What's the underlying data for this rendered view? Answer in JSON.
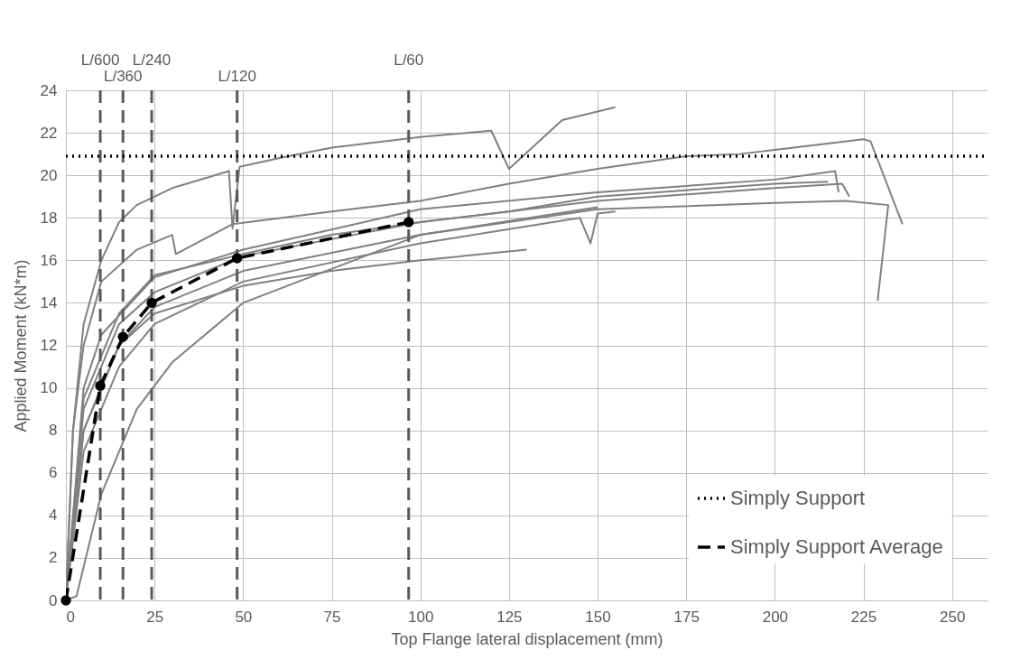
{
  "chart_data": {
    "type": "line",
    "xlabel": "Top Flange lateral displacement (mm)",
    "ylabel": "Applied Moment (kN*m)",
    "xlim": [
      0,
      260
    ],
    "xticks": [
      0,
      25,
      50,
      75,
      100,
      125,
      150,
      175,
      200,
      225,
      250
    ],
    "ylim": [
      0,
      24
    ],
    "yticks": [
      0,
      2,
      4,
      6,
      8,
      10,
      12,
      14,
      16,
      18,
      20,
      22,
      24
    ],
    "grid": true,
    "legend": "bottom right",
    "ref_lines": [
      {
        "axis": "x",
        "value": 9.7,
        "label": "L/600",
        "color": "#595959",
        "line_style": "dashed"
      },
      {
        "axis": "x",
        "value": 16.1,
        "label": "L/360",
        "color": "#595959",
        "line_style": "dashed"
      },
      {
        "axis": "x",
        "value": 24.2,
        "label": "L/240",
        "color": "#595959",
        "line_style": "dashed"
      },
      {
        "axis": "x",
        "value": 48.3,
        "label": "L/120",
        "color": "#595959",
        "line_style": "dashed"
      },
      {
        "axis": "x",
        "value": 96.7,
        "label": "L/60",
        "color": "#595959",
        "line_style": "dashed"
      }
    ],
    "series": [
      {
        "color": "#808080",
        "x": [
          0,
          2,
          5,
          10,
          15,
          20,
          30,
          46,
          47,
          49,
          60,
          75,
          100,
          120,
          125,
          140,
          150,
          155
        ],
        "values": [
          0,
          8,
          13,
          16,
          17.8,
          18.6,
          19.4,
          20.2,
          17.5,
          20.4,
          20.8,
          21.3,
          21.8,
          22.1,
          20.3,
          22.6,
          23,
          23.2
        ]
      },
      {
        "color": "#808080",
        "x": [
          0,
          2,
          5,
          10,
          20,
          30,
          31,
          47,
          75,
          100,
          125,
          150,
          175,
          190,
          200,
          225,
          227,
          236
        ],
        "values": [
          0,
          8,
          12,
          15,
          16.5,
          17.2,
          16.3,
          17.7,
          18.3,
          18.8,
          19.6,
          20.3,
          20.9,
          21,
          21.2,
          21.7,
          21.6,
          17.7
        ]
      },
      {
        "color": "#808080",
        "x": [
          0,
          5,
          10,
          25,
          50,
          100,
          150,
          200,
          217,
          218
        ],
        "values": [
          0,
          10,
          12.5,
          15.2,
          16.5,
          18.4,
          19.2,
          19.8,
          20.2,
          19.2
        ]
      },
      {
        "color": "#808080",
        "x": [
          0,
          5,
          15,
          25,
          50,
          100,
          150,
          200,
          219,
          221
        ],
        "values": [
          0,
          9,
          13,
          14.5,
          16.2,
          17.8,
          18.8,
          19.4,
          19.6,
          19
        ]
      },
      {
        "color": "#808080",
        "x": [
          0,
          5,
          15,
          25,
          50,
          100,
          150,
          200,
          220,
          232,
          229
        ],
        "values": [
          0,
          8,
          12,
          13.8,
          15.5,
          17.2,
          18.4,
          18.7,
          18.8,
          18.6,
          14.1
        ]
      },
      {
        "color": "#808080",
        "x": [
          0,
          5,
          15,
          25,
          50,
          100,
          145,
          148,
          150,
          155
        ],
        "values": [
          0,
          7,
          11,
          13,
          15,
          16.8,
          18,
          16.8,
          18.2,
          18.3
        ]
      },
      {
        "color": "#808080",
        "x": [
          0,
          5,
          15,
          25,
          50,
          75,
          100,
          130
        ],
        "values": [
          0,
          8,
          12,
          13.5,
          14.8,
          15.5,
          16,
          16.5
        ]
      },
      {
        "color": "#808080",
        "x": [
          0,
          3,
          10,
          20,
          30,
          50,
          100,
          150
        ],
        "values": [
          0,
          0.2,
          5,
          9,
          11.2,
          14,
          17.2,
          18.5
        ]
      },
      {
        "color": "#808080",
        "x": [
          0,
          5,
          15,
          25,
          50,
          75,
          100,
          125,
          150,
          175,
          200,
          215
        ],
        "values": [
          0,
          9.5,
          13.5,
          15.3,
          16.3,
          17.2,
          17.8,
          18.3,
          19,
          19.3,
          19.6,
          19.7
        ]
      },
      {
        "name": "Simply Support",
        "color": "#000000",
        "line_style": "dotted",
        "x": [
          0,
          260
        ],
        "values": [
          20.9,
          20.9
        ]
      },
      {
        "name": "Simply Support Average",
        "color": "#000000",
        "line_style": "dashed",
        "marker": "circle",
        "x": [
          0,
          9.7,
          16.1,
          24.2,
          48.3,
          96.7
        ],
        "values": [
          0,
          10.1,
          12.4,
          14,
          16.1,
          17.8
        ]
      }
    ]
  }
}
